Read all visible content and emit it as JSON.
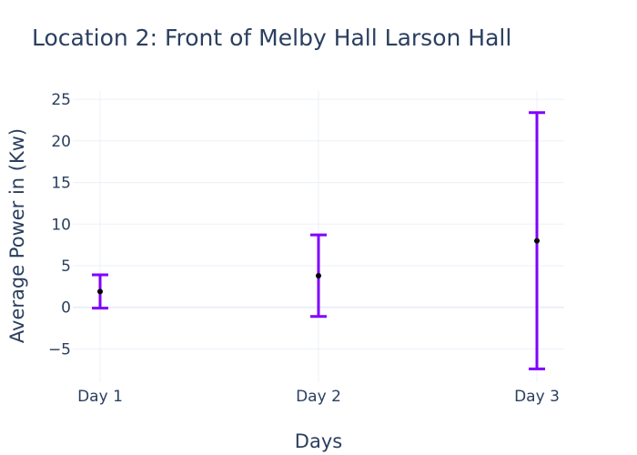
{
  "chart_data": {
    "type": "scatter",
    "title": "Location 2: Front of Melby Hall Larson Hall",
    "xlabel": "Days",
    "ylabel": "Average Power in (Kw)",
    "categories": [
      "Day 1",
      "Day 2",
      "Day 3"
    ],
    "ylim": [
      -9,
      26
    ],
    "yticks": [
      -5,
      0,
      5,
      10,
      15,
      20,
      25
    ],
    "ytick_labels": [
      "−5",
      "0",
      "5",
      "10",
      "15",
      "20",
      "25"
    ],
    "grid": true,
    "legend": false,
    "series": [
      {
        "values": [
          1.9,
          3.8,
          8.0
        ],
        "error_upper": [
          3.9,
          8.7,
          23.4
        ],
        "error_lower": [
          -0.1,
          -1.1,
          -7.4
        ]
      }
    ],
    "colors": {
      "marker": "#000000",
      "error_bar": "#7f00ff",
      "grid": "#ebf0f8",
      "text": "#2a3f5f"
    }
  }
}
